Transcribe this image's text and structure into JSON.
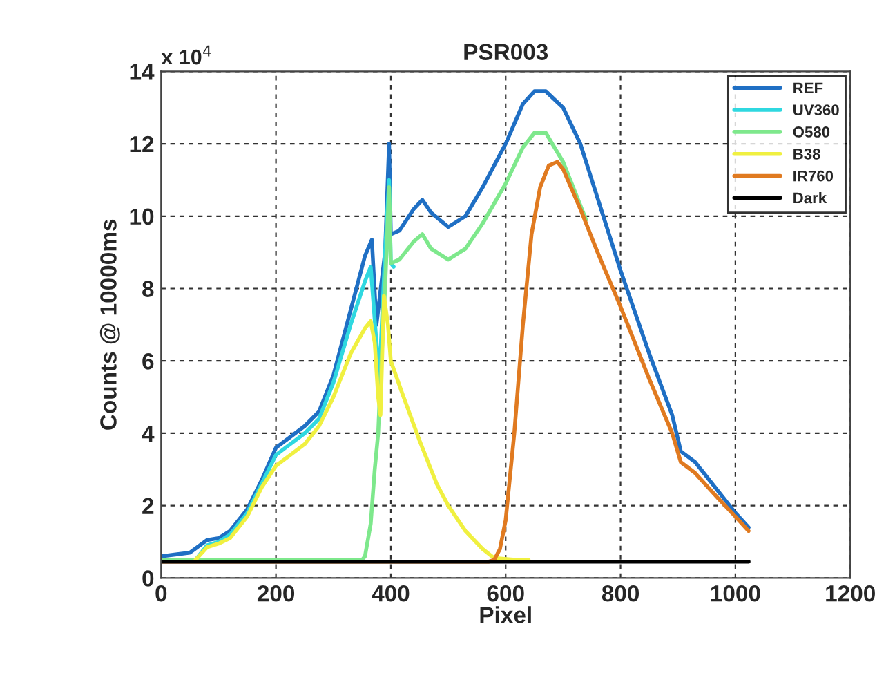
{
  "chart_data": {
    "type": "line",
    "title": "PSR003",
    "xlabel": "Pixel",
    "ylabel": "Counts @ 10000ms",
    "annotations": [
      "x 10$^{4}$"
    ],
    "xlim": [
      0,
      1200
    ],
    "xticks": [
      0,
      200,
      400,
      600,
      800,
      1000,
      1200
    ],
    "ylim": [
      0,
      14
    ],
    "yticks": [
      0,
      2,
      4,
      6,
      8,
      10,
      12,
      14
    ],
    "grid": true,
    "legend": "top right",
    "line_style": "solid",
    "marker": "none",
    "series": [
      {
        "name": "REF",
        "color": "#1f6fc4",
        "x": [
          0,
          50,
          80,
          100,
          120,
          150,
          175,
          200,
          225,
          250,
          275,
          300,
          330,
          355,
          367,
          375,
          390,
          397,
          400,
          415,
          440,
          455,
          470,
          500,
          530,
          560,
          600,
          630,
          650,
          670,
          700,
          730,
          760,
          800,
          850,
          890,
          905,
          930,
          970,
          1000,
          1023
        ],
        "values": [
          0.6,
          0.7,
          1.05,
          1.1,
          1.3,
          1.9,
          2.7,
          3.6,
          3.9,
          4.2,
          4.6,
          5.6,
          7.4,
          8.9,
          9.35,
          7.0,
          9.0,
          12.0,
          9.5,
          9.6,
          10.2,
          10.45,
          10.1,
          9.7,
          10.0,
          10.8,
          12.0,
          13.1,
          13.45,
          13.45,
          13.0,
          12.0,
          10.5,
          8.5,
          6.2,
          4.5,
          3.5,
          3.2,
          2.4,
          1.8,
          1.4
        ]
      },
      {
        "name": "UV360",
        "color": "#2fd8e0",
        "x": [
          60,
          80,
          100,
          120,
          150,
          175,
          200,
          225,
          250,
          275,
          300,
          330,
          355,
          365,
          375,
          380,
          390,
          397,
          400,
          405
        ],
        "values": [
          0.5,
          0.9,
          1.0,
          1.2,
          1.8,
          2.6,
          3.4,
          3.7,
          4.0,
          4.4,
          5.4,
          7.0,
          8.2,
          8.6,
          6.5,
          5.5,
          9.0,
          11.0,
          8.7,
          8.6
        ]
      },
      {
        "name": "O580",
        "color": "#7ee88c",
        "x": [
          0,
          350,
          355,
          365,
          372,
          378,
          382,
          390,
          397,
          400,
          415,
          440,
          455,
          470,
          500,
          530,
          560,
          600,
          630,
          650,
          670,
          700,
          730,
          740
        ],
        "values": [
          0.5,
          0.5,
          0.6,
          1.5,
          3.0,
          4.0,
          5.5,
          8.0,
          10.8,
          8.7,
          8.8,
          9.3,
          9.5,
          9.1,
          8.8,
          9.1,
          9.8,
          10.9,
          11.9,
          12.3,
          12.3,
          11.5,
          10.3,
          9.9
        ]
      },
      {
        "name": "B38",
        "color": "#f0f040",
        "x": [
          60,
          80,
          100,
          120,
          150,
          175,
          200,
          225,
          250,
          275,
          300,
          330,
          355,
          365,
          372,
          378,
          382,
          388,
          395,
          400,
          420,
          450,
          480,
          500,
          530,
          560,
          580,
          620,
          640
        ],
        "values": [
          0.5,
          0.85,
          0.95,
          1.1,
          1.7,
          2.5,
          3.1,
          3.4,
          3.7,
          4.2,
          5.0,
          6.2,
          6.9,
          7.1,
          6.5,
          5.0,
          4.5,
          7.8,
          7.0,
          6.0,
          5.1,
          3.8,
          2.6,
          2.0,
          1.3,
          0.8,
          0.55,
          0.5,
          0.5
        ]
      },
      {
        "name": "IR760",
        "color": "#e07a20",
        "x": [
          0,
          570,
          580,
          590,
          600,
          615,
          630,
          645,
          660,
          675,
          690,
          700,
          730,
          760,
          800,
          850,
          890,
          905,
          930,
          970,
          1000,
          1023
        ],
        "values": [
          0.45,
          0.45,
          0.5,
          0.8,
          1.6,
          4.0,
          7.0,
          9.5,
          10.8,
          11.4,
          11.5,
          11.3,
          10.2,
          9.0,
          7.5,
          5.5,
          4.0,
          3.2,
          2.9,
          2.2,
          1.7,
          1.3
        ]
      },
      {
        "name": "Dark",
        "color": "#000000",
        "x": [
          0,
          1023
        ],
        "values": [
          0.45,
          0.45
        ]
      }
    ]
  }
}
